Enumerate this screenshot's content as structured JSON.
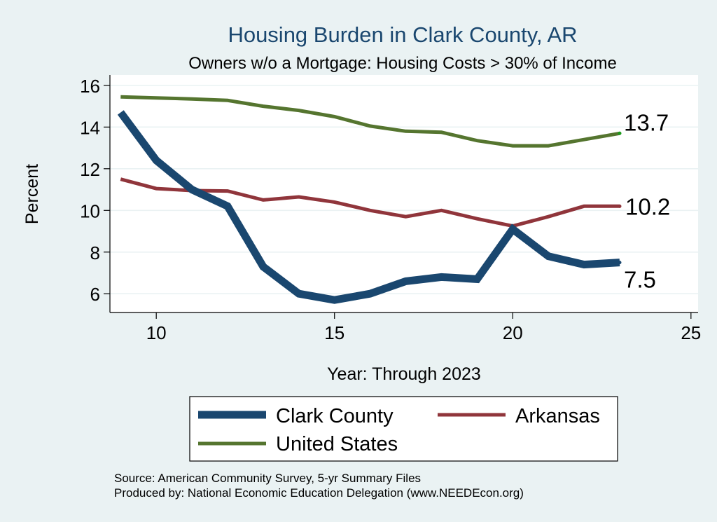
{
  "chart_data": {
    "type": "line",
    "title": "Housing Burden in Clark County, AR",
    "subtitle": "Owners w/o a Mortgage: Housing Costs > 30% of Income",
    "xlabel": "Year: Through 2023",
    "ylabel": "Percent",
    "xlim": [
      8.7,
      25.2
    ],
    "ylim": [
      5.1,
      16.5
    ],
    "x_ticks": [
      10,
      15,
      20,
      25
    ],
    "y_ticks": [
      6,
      8,
      10,
      12,
      14,
      16
    ],
    "grid": true,
    "x": [
      9,
      10,
      11,
      12,
      13,
      14,
      15,
      16,
      17,
      18,
      19,
      20,
      21,
      22,
      23
    ],
    "series": [
      {
        "name": "Clark County",
        "color": "#1a476f",
        "values": [
          14.7,
          12.4,
          11.0,
          10.2,
          7.3,
          6.0,
          5.7,
          6.0,
          6.6,
          6.8,
          6.7,
          9.1,
          7.8,
          7.4,
          7.5
        ],
        "end_label": "7.5"
      },
      {
        "name": "Arkansas",
        "color": "#90353b",
        "values": [
          11.5,
          11.05,
          10.95,
          10.93,
          10.5,
          10.65,
          10.4,
          10.0,
          9.7,
          10.0,
          9.6,
          9.25,
          9.7,
          10.2,
          10.2
        ],
        "end_label": "10.2"
      },
      {
        "name": "United States",
        "color": "#55752f",
        "values": [
          15.45,
          15.4,
          15.35,
          15.28,
          15.0,
          14.8,
          14.5,
          14.05,
          13.8,
          13.75,
          13.35,
          13.1,
          13.1,
          13.4,
          13.7
        ],
        "end_label": "13.7"
      }
    ],
    "legend": {
      "position": "bottom",
      "entries": [
        "Clark County",
        "Arkansas",
        "United States"
      ]
    },
    "notes": [
      "Source: American Community Survey, 5-yr Summary Files",
      "Produced by: National Economic Education Delegation (www.NEEDEcon.org)"
    ]
  },
  "colors": {
    "background": "#eaf2f3",
    "plot_background": "#ffffff",
    "title": "#1a476f"
  }
}
